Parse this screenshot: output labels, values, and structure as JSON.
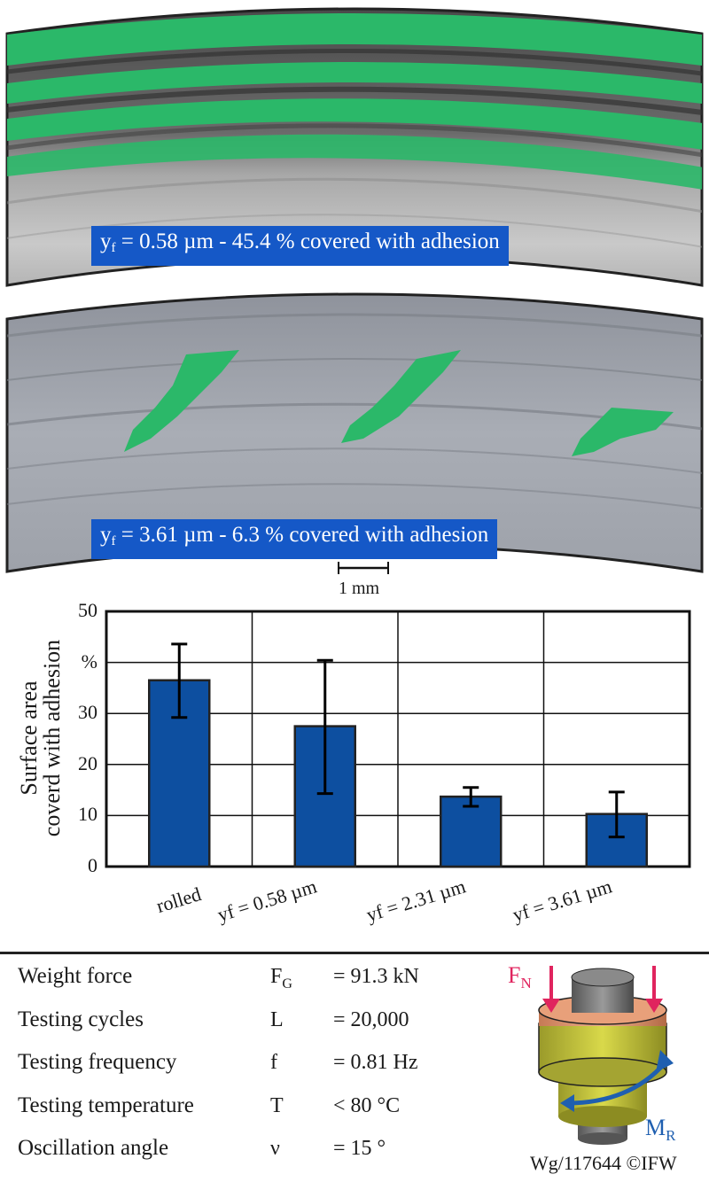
{
  "micrographs": [
    {
      "label_prefix": "y",
      "label_sub": "f",
      "label_text": " = 0.58 µm - 45.4 % covered with adhesion"
    },
    {
      "label_prefix": "y",
      "label_sub": "f",
      "label_text": " = 3.61 µm - 6.3 % covered with adhesion"
    }
  ],
  "scale_bar": {
    "label": "1 mm"
  },
  "chart_data": {
    "type": "bar",
    "categories": [
      "rolled",
      "yf = 0.58 µm",
      "yf = 2.31 µm",
      "yf = 3.61 µm"
    ],
    "values": [
      36.5,
      27.5,
      13.7,
      10.3
    ],
    "error_low": [
      29.2,
      14.3,
      11.8,
      5.8
    ],
    "error_high": [
      43.6,
      40.4,
      15.5,
      14.6
    ],
    "yticks": [
      "0",
      "10",
      "20",
      "30",
      "%",
      "50"
    ],
    "ylim": [
      0,
      50
    ],
    "ylabel_line1": "Surface area",
    "ylabel_line2": "coverd with adhesion",
    "bar_color": "#0d4fa0",
    "grid": true
  },
  "parameters": [
    {
      "name": "Weight force",
      "symbol": "F",
      "symbol_sub": "G",
      "value": "= 91.3 kN"
    },
    {
      "name": "Testing cycles",
      "symbol": "L",
      "symbol_sub": "",
      "value": "= 20,000"
    },
    {
      "name": "Testing frequency",
      "symbol": "f",
      "symbol_sub": "",
      "value": "= 0.81 Hz"
    },
    {
      "name": "Testing temperature",
      "symbol": "T",
      "symbol_sub": "",
      "value": "< 80 °C"
    },
    {
      "name": "Oscillation angle",
      "symbol": "ν",
      "symbol_sub": "",
      "value": "= 15 °"
    }
  ],
  "bearing_figure": {
    "fn_label": "F",
    "fn_sub": "N",
    "mr_label": "M",
    "mr_sub": "R",
    "fn_color": "#e0245e",
    "mr_color": "#1f5fb0"
  },
  "footer": {
    "credit": "Wg/117644 ©IFW"
  },
  "colors": {
    "adhesion_green": "#2bb869",
    "caption_blue": "#1558c7"
  }
}
